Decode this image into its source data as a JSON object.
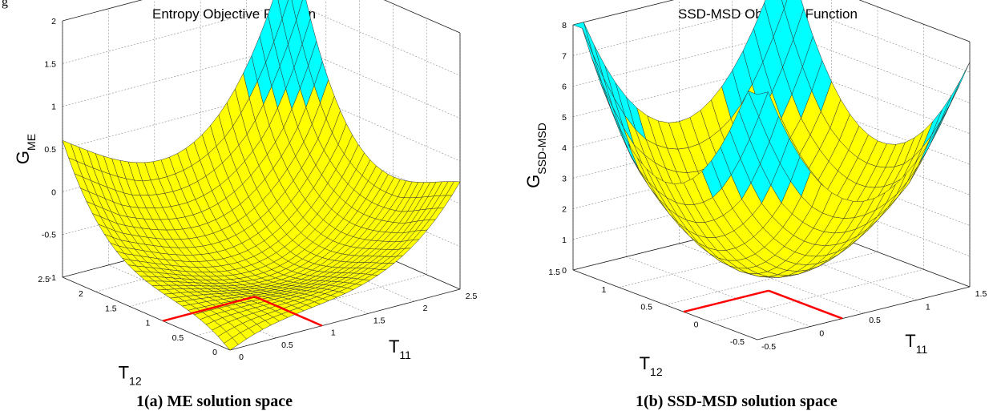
{
  "page_label": "g",
  "chart_data": [
    {
      "type": "surface",
      "title": "Entropy Objective Function",
      "caption": "1(a) ME solution space",
      "xlabel": "T",
      "xlabel_sub": "11",
      "ylabel": "T",
      "ylabel_sub": "12",
      "zlabel": "G",
      "zlabel_sub": "ME",
      "xlim": [
        0,
        2.5
      ],
      "ylim": [
        0,
        2.5
      ],
      "zlim": [
        -1,
        2
      ],
      "x_ticks": [
        "0",
        "0.5",
        "1",
        "1.5",
        "2",
        "2.5"
      ],
      "y_ticks": [
        "0",
        "0.5",
        "1",
        "1.5",
        "2",
        "2.5"
      ],
      "z_ticks": [
        "-1",
        "-0.5",
        "0",
        "0.5",
        "1",
        "1.5",
        "2"
      ],
      "surface_colors": [
        "#ffff00",
        "#00ffff"
      ],
      "constraint_line_color": "#ff0000",
      "corner_heights": {
        "x0y0": -1.0,
        "x_max_y0": 0.1,
        "x0_y_max": 0.4,
        "x_max_y_max": 1.85
      },
      "grid": true
    },
    {
      "type": "surface",
      "title": "SSD-MSD Objective Function",
      "caption": "1(b) SSD-MSD solution space",
      "xlabel": "T",
      "xlabel_sub": "11",
      "ylabel": "T",
      "ylabel_sub": "12",
      "zlabel": "G",
      "zlabel_sub": "SSD-MSD",
      "xlim": [
        -0.5,
        1.5
      ],
      "ylim": [
        -0.5,
        1.5
      ],
      "zlim": [
        0,
        8
      ],
      "x_ticks": [
        "-0.5",
        "0",
        "0.5",
        "1",
        "1.5"
      ],
      "y_ticks": [
        "-0.5",
        "0",
        "0.5",
        "1",
        "1.5"
      ],
      "z_ticks": [
        "0",
        "1",
        "2",
        "3",
        "4",
        "5",
        "6",
        "7",
        "8"
      ],
      "surface_colors": [
        "#ffff00",
        "#00ffff"
      ],
      "constraint_line_color": "#ff0000",
      "corner_heights": {
        "x0y0": 7.9,
        "x_max_y0": 6.4,
        "x0_y_max": 7.8,
        "x_max_y_max": 7.8
      },
      "grid": true
    }
  ]
}
